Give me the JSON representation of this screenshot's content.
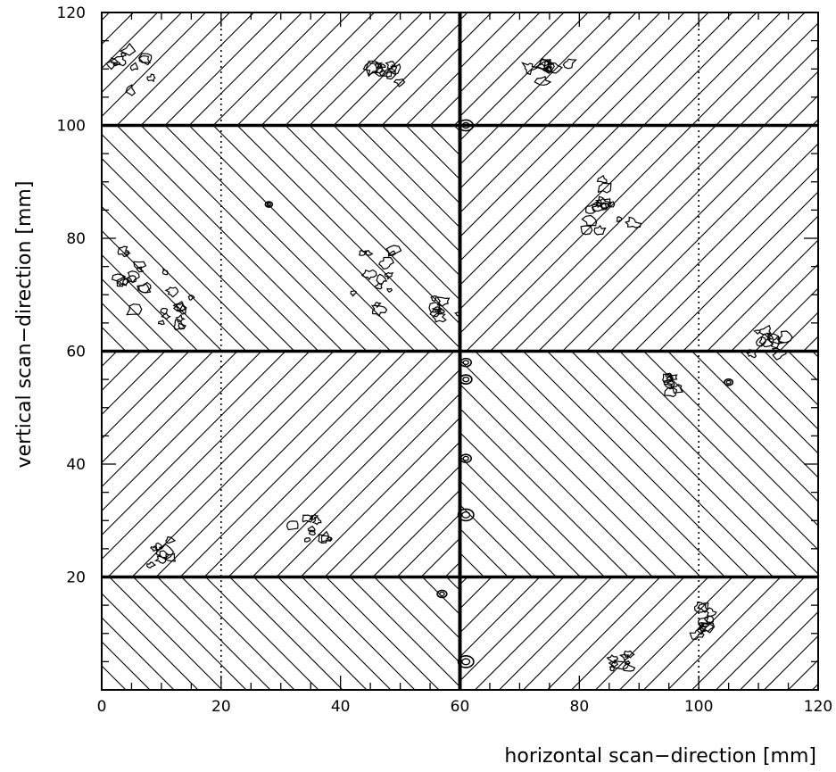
{
  "chart_data": {
    "type": "contour",
    "title": "",
    "xlabel": "horizontal scan−direction [mm]",
    "ylabel": "vertical scan−direction [mm]",
    "xlim": [
      0,
      120
    ],
    "ylim": [
      0,
      120
    ],
    "x_ticks": [
      0,
      20,
      40,
      60,
      80,
      100,
      120
    ],
    "y_ticks": [
      20,
      40,
      60,
      80,
      100,
      120
    ],
    "grid": false,
    "colors": {
      "ink": "#000000",
      "background": "#ffffff"
    },
    "module_boundaries": {
      "horizontal_y": [
        20,
        60,
        100
      ],
      "vertical_x": [
        60
      ]
    },
    "dotted_lines_x": [
      20,
      100
    ],
    "hatched_regions": [
      {
        "x": [
          0,
          60
        ],
        "y": [
          100,
          120
        ],
        "hatch": "diagonal-up"
      },
      {
        "x": [
          60,
          120
        ],
        "y": [
          100,
          120
        ],
        "hatch": "diagonal-up"
      },
      {
        "x": [
          0,
          60
        ],
        "y": [
          60,
          100
        ],
        "hatch": "diagonal-down"
      },
      {
        "x": [
          60,
          120
        ],
        "y": [
          60,
          100
        ],
        "hatch": "diagonal-up"
      },
      {
        "x": [
          0,
          60
        ],
        "y": [
          20,
          60
        ],
        "hatch": "diagonal-up"
      },
      {
        "x": [
          60,
          120
        ],
        "y": [
          20,
          60
        ],
        "hatch": "diagonal-down"
      },
      {
        "x": [
          0,
          60
        ],
        "y": [
          0,
          20
        ],
        "hatch": "diagonal-down"
      },
      {
        "x": [
          60,
          120
        ],
        "y": [
          0,
          20
        ],
        "hatch": "diagonal-up"
      }
    ],
    "contour_clusters": [
      {
        "x": 5,
        "y": 110,
        "r": 4
      },
      {
        "x": 5,
        "y": 73,
        "r": 6
      },
      {
        "x": 12,
        "y": 66,
        "r": 5
      },
      {
        "x": 10,
        "y": 24,
        "r": 3
      },
      {
        "x": 47,
        "y": 73,
        "r": 6
      },
      {
        "x": 57,
        "y": 67,
        "r": 3
      },
      {
        "x": 49,
        "y": 110,
        "r": 5
      },
      {
        "x": 84,
        "y": 86,
        "r": 6
      },
      {
        "x": 75,
        "y": 110,
        "r": 4
      },
      {
        "x": 112,
        "y": 62,
        "r": 4
      },
      {
        "x": 35,
        "y": 28,
        "r": 4
      },
      {
        "x": 101,
        "y": 12,
        "r": 4
      },
      {
        "x": 88,
        "y": 4,
        "r": 3
      },
      {
        "x": 95,
        "y": 55,
        "r": 3
      }
    ],
    "rings": [
      {
        "x": 61,
        "y": 100,
        "r": 1.2
      },
      {
        "x": 61,
        "y": 55,
        "r": 1.0
      },
      {
        "x": 61,
        "y": 58,
        "r": 0.9
      },
      {
        "x": 61,
        "y": 31,
        "r": 1.3
      },
      {
        "x": 61,
        "y": 41,
        "r": 0.9
      },
      {
        "x": 61,
        "y": 5,
        "r": 1.3
      },
      {
        "x": 57,
        "y": 17,
        "r": 0.8
      },
      {
        "x": 105,
        "y": 54.5,
        "r": 0.7
      },
      {
        "x": 28,
        "y": 86,
        "r": 0.6
      }
    ]
  }
}
